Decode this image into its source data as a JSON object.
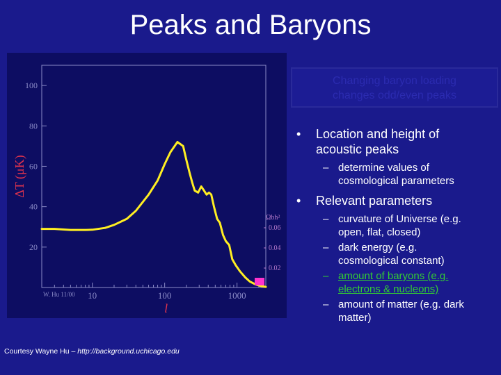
{
  "slide": {
    "title": "Peaks and Baryons",
    "callout_lines": [
      "Changing baryon loading",
      "changes odd/even peaks"
    ],
    "bullets": [
      {
        "text_lines": [
          "Location and height of",
          "acoustic peaks"
        ],
        "sub": [
          {
            "lines": [
              "determine values of",
              "cosmological parameters"
            ],
            "highlight": false
          }
        ]
      },
      {
        "text_lines": [
          "Relevant parameters"
        ],
        "sub": [
          {
            "lines": [
              "curvature of Universe (e.g.",
              "open, flat, closed)"
            ],
            "highlight": false
          },
          {
            "lines": [
              "dark energy (e.g.",
              "cosmological constant)"
            ],
            "highlight": false
          },
          {
            "lines": [
              "amount of baryons (e.g.",
              "electrons & nucleons)"
            ],
            "highlight": true
          },
          {
            "lines": [
              "amount of matter (e.g. dark",
              "matter)"
            ],
            "highlight": false
          }
        ]
      }
    ],
    "credit_prefix": "Courtesy Wayne Hu – ",
    "credit_url": "http://background.uchicago.edu"
  },
  "chart_data": {
    "type": "line",
    "xlabel": "l",
    "ylabel": "ΔT (μK)",
    "xscale": "log",
    "xlim": [
      2,
      2500
    ],
    "ylim": [
      0,
      110
    ],
    "x_ticks": [
      10,
      100,
      1000
    ],
    "y_ticks": [
      20,
      40,
      60,
      80,
      100
    ],
    "right_axis_label": "Ωbh²",
    "right_axis_ticks": [
      "0.02",
      "0.04",
      "0.06"
    ],
    "corner_note": "W. Hu 11/00",
    "series_color": "#ffee22",
    "marker_color": "#ff33cc",
    "series": [
      {
        "x": [
          2,
          3,
          5,
          8,
          10,
          15,
          20,
          30,
          40,
          60,
          80,
          100,
          120,
          150,
          180,
          200,
          220,
          240,
          260,
          290,
          320,
          350,
          380,
          410,
          440,
          480,
          530,
          580,
          640,
          700,
          780,
          860,
          960,
          1100,
          1300,
          1500,
          1800,
          2100,
          2500
        ],
        "y": [
          29,
          29,
          28.5,
          28.5,
          28.6,
          29.5,
          31,
          34,
          38,
          46,
          53,
          61,
          67,
          72,
          70,
          63,
          57,
          52,
          48,
          47,
          50,
          48,
          46,
          47,
          46,
          40,
          34,
          32,
          26,
          23,
          21,
          14,
          11,
          8,
          5,
          3,
          1.5,
          0.8,
          0.3
        ]
      }
    ]
  }
}
